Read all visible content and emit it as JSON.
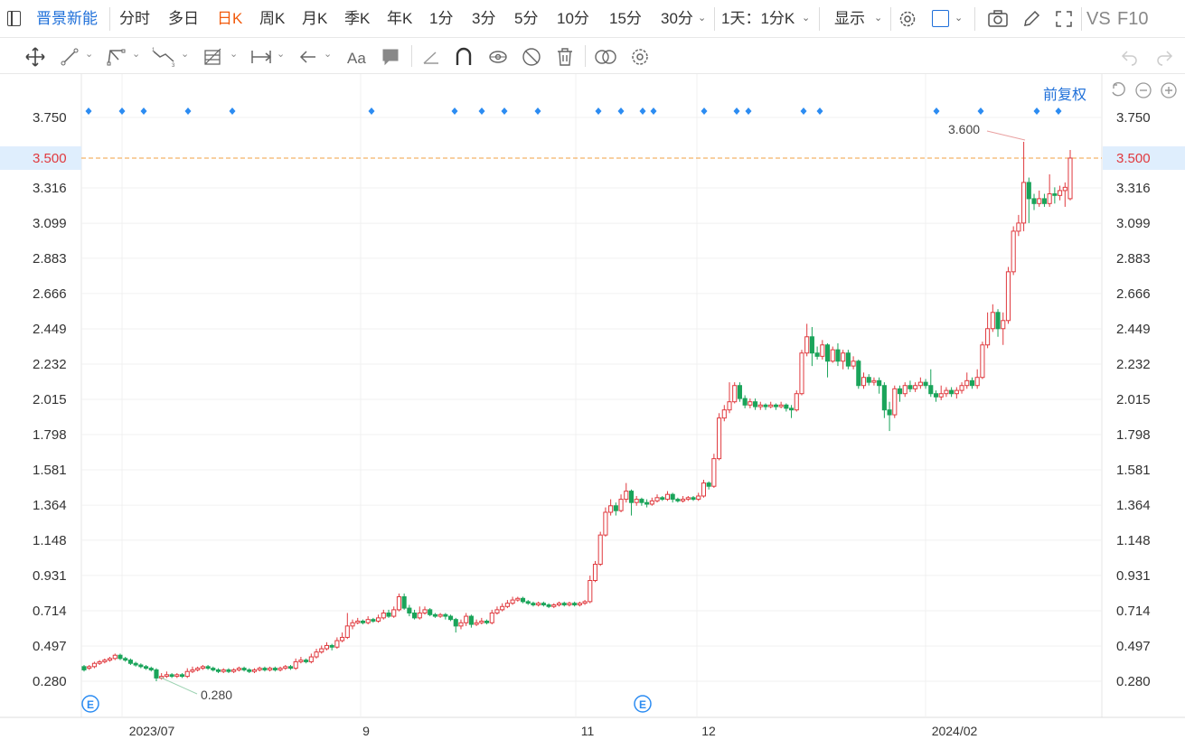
{
  "toolbar": {
    "stock_name": "晋景新能",
    "periods": [
      "分时",
      "多日",
      "日K",
      "周K",
      "月K",
      "季K",
      "年K",
      "1分",
      "3分",
      "5分",
      "10分",
      "15分",
      "30分"
    ],
    "active_period": "日K",
    "minute_combo": "1天：1分K",
    "display_label": "显示",
    "vs_label": "VS",
    "f10_label": "F10"
  },
  "chart_controls": {
    "adjust_label": "前复权"
  },
  "colors": {
    "up": "#e0393e",
    "down": "#1aa45a",
    "active": "#f25a0c",
    "link": "#1e6fd9",
    "marker": "#2c8cf2",
    "price_line": "#f2a040",
    "current_price_bg": "#dfeefd"
  },
  "chart_data": {
    "type": "candlestick",
    "yticks": [
      "3.750",
      "3.500",
      "3.316",
      "3.099",
      "2.883",
      "2.666",
      "2.449",
      "2.232",
      "2.015",
      "1.798",
      "1.581",
      "1.364",
      "1.148",
      "0.931",
      "0.714",
      "0.497",
      "0.280"
    ],
    "ylim": [
      0.17,
      3.88
    ],
    "xticks": [
      "2023/07",
      "9",
      "11",
      "12",
      "2024/02"
    ],
    "current_price": "3.500",
    "max_label": "3.600",
    "min_label": "0.280",
    "event_marker": "E",
    "candles": [
      [
        0.37,
        0.35,
        0.38,
        0.34
      ],
      [
        0.36,
        0.37,
        0.38,
        0.35
      ],
      [
        0.37,
        0.39,
        0.4,
        0.36
      ],
      [
        0.39,
        0.4,
        0.41,
        0.38
      ],
      [
        0.4,
        0.41,
        0.42,
        0.39
      ],
      [
        0.41,
        0.42,
        0.43,
        0.4
      ],
      [
        0.42,
        0.44,
        0.45,
        0.41
      ],
      [
        0.44,
        0.42,
        0.45,
        0.41
      ],
      [
        0.42,
        0.41,
        0.43,
        0.4
      ],
      [
        0.41,
        0.39,
        0.42,
        0.38
      ],
      [
        0.39,
        0.38,
        0.4,
        0.37
      ],
      [
        0.38,
        0.37,
        0.39,
        0.36
      ],
      [
        0.37,
        0.36,
        0.38,
        0.35
      ],
      [
        0.36,
        0.35,
        0.37,
        0.34
      ],
      [
        0.35,
        0.3,
        0.36,
        0.28
      ],
      [
        0.3,
        0.31,
        0.33,
        0.29
      ],
      [
        0.31,
        0.32,
        0.34,
        0.3
      ],
      [
        0.32,
        0.31,
        0.33,
        0.3
      ],
      [
        0.31,
        0.32,
        0.33,
        0.3
      ],
      [
        0.32,
        0.31,
        0.33,
        0.3
      ],
      [
        0.31,
        0.34,
        0.36,
        0.3
      ],
      [
        0.34,
        0.35,
        0.37,
        0.33
      ],
      [
        0.35,
        0.36,
        0.37,
        0.34
      ],
      [
        0.36,
        0.37,
        0.38,
        0.35
      ],
      [
        0.37,
        0.36,
        0.38,
        0.35
      ],
      [
        0.36,
        0.35,
        0.37,
        0.34
      ],
      [
        0.35,
        0.34,
        0.36,
        0.33
      ],
      [
        0.34,
        0.35,
        0.36,
        0.33
      ],
      [
        0.35,
        0.34,
        0.36,
        0.33
      ],
      [
        0.34,
        0.35,
        0.36,
        0.33
      ],
      [
        0.35,
        0.36,
        0.37,
        0.34
      ],
      [
        0.36,
        0.35,
        0.37,
        0.34
      ],
      [
        0.35,
        0.34,
        0.36,
        0.33
      ],
      [
        0.34,
        0.35,
        0.36,
        0.33
      ],
      [
        0.35,
        0.36,
        0.37,
        0.34
      ],
      [
        0.36,
        0.35,
        0.37,
        0.34
      ],
      [
        0.35,
        0.36,
        0.37,
        0.34
      ],
      [
        0.36,
        0.35,
        0.37,
        0.34
      ],
      [
        0.35,
        0.36,
        0.37,
        0.34
      ],
      [
        0.36,
        0.37,
        0.38,
        0.35
      ],
      [
        0.37,
        0.36,
        0.38,
        0.35
      ],
      [
        0.36,
        0.4,
        0.42,
        0.35
      ],
      [
        0.4,
        0.41,
        0.43,
        0.39
      ],
      [
        0.41,
        0.4,
        0.42,
        0.39
      ],
      [
        0.4,
        0.43,
        0.45,
        0.39
      ],
      [
        0.43,
        0.46,
        0.48,
        0.42
      ],
      [
        0.46,
        0.48,
        0.5,
        0.45
      ],
      [
        0.48,
        0.5,
        0.52,
        0.47
      ],
      [
        0.5,
        0.49,
        0.51,
        0.47
      ],
      [
        0.49,
        0.53,
        0.55,
        0.48
      ],
      [
        0.53,
        0.55,
        0.58,
        0.52
      ],
      [
        0.55,
        0.62,
        0.7,
        0.54
      ],
      [
        0.62,
        0.64,
        0.66,
        0.6
      ],
      [
        0.64,
        0.65,
        0.67,
        0.63
      ],
      [
        0.65,
        0.64,
        0.66,
        0.63
      ],
      [
        0.64,
        0.66,
        0.68,
        0.63
      ],
      [
        0.66,
        0.65,
        0.67,
        0.64
      ],
      [
        0.65,
        0.67,
        0.69,
        0.64
      ],
      [
        0.67,
        0.7,
        0.72,
        0.66
      ],
      [
        0.7,
        0.68,
        0.72,
        0.67
      ],
      [
        0.68,
        0.72,
        0.74,
        0.67
      ],
      [
        0.72,
        0.8,
        0.82,
        0.71
      ],
      [
        0.8,
        0.73,
        0.82,
        0.72
      ],
      [
        0.73,
        0.7,
        0.75,
        0.68
      ],
      [
        0.7,
        0.67,
        0.72,
        0.66
      ],
      [
        0.67,
        0.7,
        0.74,
        0.66
      ],
      [
        0.7,
        0.72,
        0.74,
        0.69
      ],
      [
        0.72,
        0.69,
        0.73,
        0.68
      ],
      [
        0.69,
        0.68,
        0.7,
        0.67
      ],
      [
        0.68,
        0.69,
        0.7,
        0.67
      ],
      [
        0.69,
        0.68,
        0.7,
        0.66
      ],
      [
        0.68,
        0.66,
        0.69,
        0.65
      ],
      [
        0.66,
        0.62,
        0.67,
        0.58
      ],
      [
        0.62,
        0.64,
        0.66,
        0.6
      ],
      [
        0.64,
        0.68,
        0.7,
        0.62
      ],
      [
        0.68,
        0.63,
        0.69,
        0.61
      ],
      [
        0.63,
        0.64,
        0.66,
        0.62
      ],
      [
        0.64,
        0.65,
        0.67,
        0.63
      ],
      [
        0.65,
        0.64,
        0.66,
        0.63
      ],
      [
        0.64,
        0.7,
        0.72,
        0.63
      ],
      [
        0.7,
        0.72,
        0.74,
        0.69
      ],
      [
        0.72,
        0.74,
        0.76,
        0.71
      ],
      [
        0.74,
        0.76,
        0.78,
        0.73
      ],
      [
        0.76,
        0.78,
        0.8,
        0.75
      ],
      [
        0.78,
        0.79,
        0.8,
        0.77
      ],
      [
        0.79,
        0.77,
        0.8,
        0.76
      ],
      [
        0.77,
        0.76,
        0.78,
        0.75
      ],
      [
        0.76,
        0.75,
        0.77,
        0.74
      ],
      [
        0.75,
        0.76,
        0.77,
        0.74
      ],
      [
        0.76,
        0.75,
        0.77,
        0.74
      ],
      [
        0.75,
        0.74,
        0.76,
        0.73
      ],
      [
        0.74,
        0.75,
        0.76,
        0.73
      ],
      [
        0.75,
        0.76,
        0.77,
        0.74
      ],
      [
        0.76,
        0.75,
        0.77,
        0.74
      ],
      [
        0.75,
        0.76,
        0.77,
        0.74
      ],
      [
        0.76,
        0.75,
        0.77,
        0.74
      ],
      [
        0.75,
        0.76,
        0.77,
        0.74
      ],
      [
        0.76,
        0.77,
        0.78,
        0.75
      ],
      [
        0.77,
        0.9,
        0.93,
        0.76
      ],
      [
        0.9,
        1.0,
        1.02,
        0.89
      ],
      [
        1.0,
        1.18,
        1.2,
        0.99
      ],
      [
        1.18,
        1.32,
        1.35,
        1.17
      ],
      [
        1.32,
        1.36,
        1.4,
        1.3
      ],
      [
        1.36,
        1.33,
        1.38,
        1.3
      ],
      [
        1.33,
        1.4,
        1.43,
        1.32
      ],
      [
        1.4,
        1.45,
        1.5,
        1.38
      ],
      [
        1.45,
        1.38,
        1.46,
        1.3
      ],
      [
        1.38,
        1.4,
        1.42,
        1.36
      ],
      [
        1.4,
        1.38,
        1.41,
        1.36
      ],
      [
        1.38,
        1.37,
        1.4,
        1.35
      ],
      [
        1.37,
        1.39,
        1.41,
        1.36
      ],
      [
        1.39,
        1.41,
        1.43,
        1.38
      ],
      [
        1.41,
        1.4,
        1.42,
        1.39
      ],
      [
        1.4,
        1.43,
        1.45,
        1.39
      ],
      [
        1.43,
        1.4,
        1.44,
        1.38
      ],
      [
        1.4,
        1.39,
        1.41,
        1.38
      ],
      [
        1.39,
        1.4,
        1.42,
        1.38
      ],
      [
        1.4,
        1.41,
        1.42,
        1.39
      ],
      [
        1.41,
        1.4,
        1.42,
        1.39
      ],
      [
        1.4,
        1.42,
        1.44,
        1.39
      ],
      [
        1.42,
        1.5,
        1.52,
        1.41
      ],
      [
        1.5,
        1.48,
        1.51,
        1.46
      ],
      [
        1.48,
        1.65,
        1.68,
        1.47
      ],
      [
        1.65,
        1.9,
        1.93,
        1.64
      ],
      [
        1.9,
        1.95,
        1.98,
        1.88
      ],
      [
        1.95,
        2.0,
        2.12,
        1.93
      ],
      [
        2.0,
        2.1,
        2.12,
        1.99
      ],
      [
        2.1,
        2.02,
        2.12,
        2.0
      ],
      [
        2.02,
        1.98,
        2.04,
        1.96
      ],
      [
        1.98,
        2.0,
        2.02,
        1.96
      ],
      [
        2.0,
        1.97,
        2.02,
        1.95
      ],
      [
        1.97,
        1.98,
        2.0,
        1.95
      ],
      [
        1.98,
        1.97,
        1.99,
        1.95
      ],
      [
        1.97,
        1.98,
        2.0,
        1.96
      ],
      [
        1.98,
        1.97,
        1.99,
        1.95
      ],
      [
        1.97,
        1.98,
        2.0,
        1.96
      ],
      [
        1.98,
        1.96,
        1.99,
        1.94
      ],
      [
        1.96,
        1.95,
        1.98,
        1.9
      ],
      [
        1.95,
        2.05,
        2.07,
        1.94
      ],
      [
        2.05,
        2.3,
        2.32,
        2.04
      ],
      [
        2.3,
        2.4,
        2.48,
        2.28
      ],
      [
        2.4,
        2.3,
        2.46,
        2.22
      ],
      [
        2.3,
        2.28,
        2.34,
        2.26
      ],
      [
        2.28,
        2.35,
        2.38,
        2.26
      ],
      [
        2.35,
        2.25,
        2.36,
        2.15
      ],
      [
        2.25,
        2.32,
        2.34,
        2.24
      ],
      [
        2.32,
        2.25,
        2.36,
        2.22
      ],
      [
        2.25,
        2.3,
        2.32,
        2.2
      ],
      [
        2.3,
        2.22,
        2.32,
        2.2
      ],
      [
        2.22,
        2.25,
        2.28,
        2.2
      ],
      [
        2.25,
        2.1,
        2.26,
        2.08
      ],
      [
        2.1,
        2.15,
        2.18,
        2.08
      ],
      [
        2.15,
        2.12,
        2.17,
        2.1
      ],
      [
        2.12,
        2.13,
        2.15,
        2.1
      ],
      [
        2.13,
        2.1,
        2.15,
        2.05
      ],
      [
        2.1,
        1.95,
        2.12,
        1.9
      ],
      [
        1.95,
        1.92,
        2.0,
        1.82
      ],
      [
        1.92,
        2.08,
        2.1,
        1.9
      ],
      [
        2.08,
        2.05,
        2.1,
        2.0
      ],
      [
        2.05,
        2.1,
        2.12,
        2.03
      ],
      [
        2.1,
        2.08,
        2.13,
        2.06
      ],
      [
        2.08,
        2.1,
        2.12,
        2.06
      ],
      [
        2.1,
        2.12,
        2.15,
        2.08
      ],
      [
        2.12,
        2.1,
        2.14,
        2.08
      ],
      [
        2.1,
        2.05,
        2.2,
        2.03
      ],
      [
        2.05,
        2.03,
        2.07,
        2.0
      ],
      [
        2.03,
        2.05,
        2.1,
        2.01
      ],
      [
        2.05,
        2.07,
        2.09,
        2.03
      ],
      [
        2.07,
        2.05,
        2.09,
        2.03
      ],
      [
        2.05,
        2.07,
        2.09,
        2.02
      ],
      [
        2.07,
        2.1,
        2.12,
        2.05
      ],
      [
        2.1,
        2.13,
        2.18,
        2.08
      ],
      [
        2.13,
        2.1,
        2.15,
        2.08
      ],
      [
        2.1,
        2.15,
        2.2,
        2.08
      ],
      [
        2.15,
        2.35,
        2.37,
        2.14
      ],
      [
        2.35,
        2.45,
        2.55,
        2.33
      ],
      [
        2.45,
        2.55,
        2.6,
        2.43
      ],
      [
        2.55,
        2.45,
        2.57,
        2.4
      ],
      [
        2.45,
        2.5,
        2.55,
        2.35
      ],
      [
        2.5,
        2.8,
        2.83,
        2.48
      ],
      [
        2.8,
        3.05,
        3.08,
        2.78
      ],
      [
        3.05,
        3.1,
        3.15,
        3.02
      ],
      [
        3.1,
        3.35,
        3.6,
        3.05
      ],
      [
        3.35,
        3.25,
        3.38,
        3.1
      ],
      [
        3.25,
        3.22,
        3.28,
        3.18
      ],
      [
        3.22,
        3.25,
        3.3,
        3.2
      ],
      [
        3.25,
        3.22,
        3.28,
        3.2
      ],
      [
        3.22,
        3.28,
        3.4,
        3.2
      ],
      [
        3.28,
        3.27,
        3.32,
        3.22
      ],
      [
        3.27,
        3.3,
        3.33,
        3.24
      ],
      [
        3.3,
        3.32,
        3.35,
        3.2
      ],
      [
        3.25,
        3.5,
        3.55,
        3.24
      ]
    ]
  }
}
